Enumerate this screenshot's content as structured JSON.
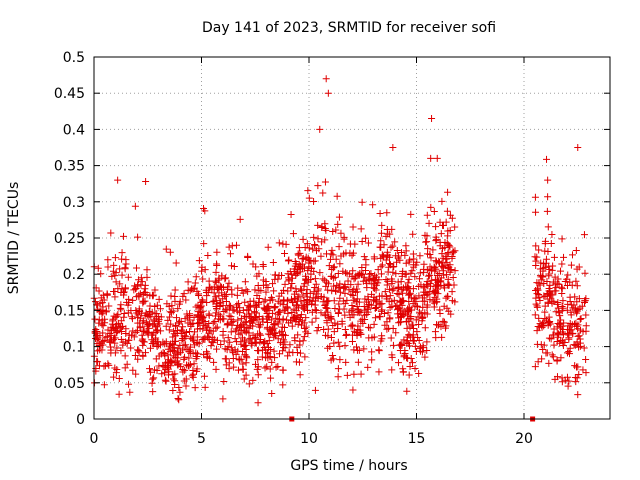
{
  "chart_data": {
    "type": "scatter",
    "title": "Day 141 of 2023, SRMTID for receiver sofi",
    "xlabel": "GPS time / hours",
    "ylabel": "SRMTID / TECUs",
    "xlim": [
      0,
      24
    ],
    "ylim": [
      0,
      0.5
    ],
    "xticks": [
      "0",
      "5",
      "10",
      "15",
      "20"
    ],
    "xtick_values": [
      0,
      5,
      10,
      15,
      20
    ],
    "yticks": [
      "0",
      "0.05",
      "0.1",
      "0.15",
      "0.2",
      "0.25",
      "0.3",
      "0.35",
      "0.4",
      "0.45",
      "0.5"
    ],
    "ytick_values": [
      0,
      0.05,
      0.1,
      0.15,
      0.2,
      0.25,
      0.3,
      0.35,
      0.4,
      0.45,
      0.5
    ],
    "grid": true,
    "marker": "+",
    "color": "#e00000",
    "series": [
      {
        "name": "SRMTID",
        "segments": [
          {
            "x_start": 0.0,
            "x_end": 16.8
          },
          {
            "x_start": 20.5,
            "x_end": 22.9
          }
        ],
        "approx_profile": [
          {
            "x": 0.5,
            "y_median": 0.13,
            "y_spread": 0.06
          },
          {
            "x": 1.5,
            "y_median": 0.14,
            "y_spread": 0.07
          },
          {
            "x": 2.5,
            "y_median": 0.13,
            "y_spread": 0.06
          },
          {
            "x": 3.5,
            "y_median": 0.1,
            "y_spread": 0.05
          },
          {
            "x": 4.5,
            "y_median": 0.12,
            "y_spread": 0.06
          },
          {
            "x": 5.5,
            "y_median": 0.15,
            "y_spread": 0.06
          },
          {
            "x": 6.5,
            "y_median": 0.13,
            "y_spread": 0.06
          },
          {
            "x": 7.5,
            "y_median": 0.12,
            "y_spread": 0.06
          },
          {
            "x": 8.5,
            "y_median": 0.13,
            "y_spread": 0.06
          },
          {
            "x": 9.5,
            "y_median": 0.17,
            "y_spread": 0.07
          },
          {
            "x": 10.5,
            "y_median": 0.2,
            "y_spread": 0.08
          },
          {
            "x": 11.5,
            "y_median": 0.16,
            "y_spread": 0.07
          },
          {
            "x": 12.5,
            "y_median": 0.16,
            "y_spread": 0.07
          },
          {
            "x": 13.5,
            "y_median": 0.19,
            "y_spread": 0.07
          },
          {
            "x": 14.5,
            "y_median": 0.14,
            "y_spread": 0.06
          },
          {
            "x": 15.5,
            "y_median": 0.18,
            "y_spread": 0.07
          },
          {
            "x": 16.5,
            "y_median": 0.21,
            "y_spread": 0.07
          },
          {
            "x": 21.0,
            "y_median": 0.17,
            "y_spread": 0.07
          },
          {
            "x": 22.0,
            "y_median": 0.13,
            "y_spread": 0.06
          },
          {
            "x": 22.7,
            "y_median": 0.13,
            "y_spread": 0.07
          }
        ],
        "peaks": [
          {
            "x": 10.8,
            "y": 0.47
          },
          {
            "x": 10.9,
            "y": 0.45
          },
          {
            "x": 10.5,
            "y": 0.4
          },
          {
            "x": 15.7,
            "y": 0.415
          },
          {
            "x": 13.9,
            "y": 0.375
          },
          {
            "x": 22.5,
            "y": 0.375
          },
          {
            "x": 1.1,
            "y": 0.33
          },
          {
            "x": 2.4,
            "y": 0.328
          },
          {
            "x": 21.1,
            "y": 0.33
          }
        ]
      }
    ],
    "markers_on_zero": [
      {
        "x": 9.2,
        "y": 0
      },
      {
        "x": 20.4,
        "y": 0
      }
    ]
  }
}
